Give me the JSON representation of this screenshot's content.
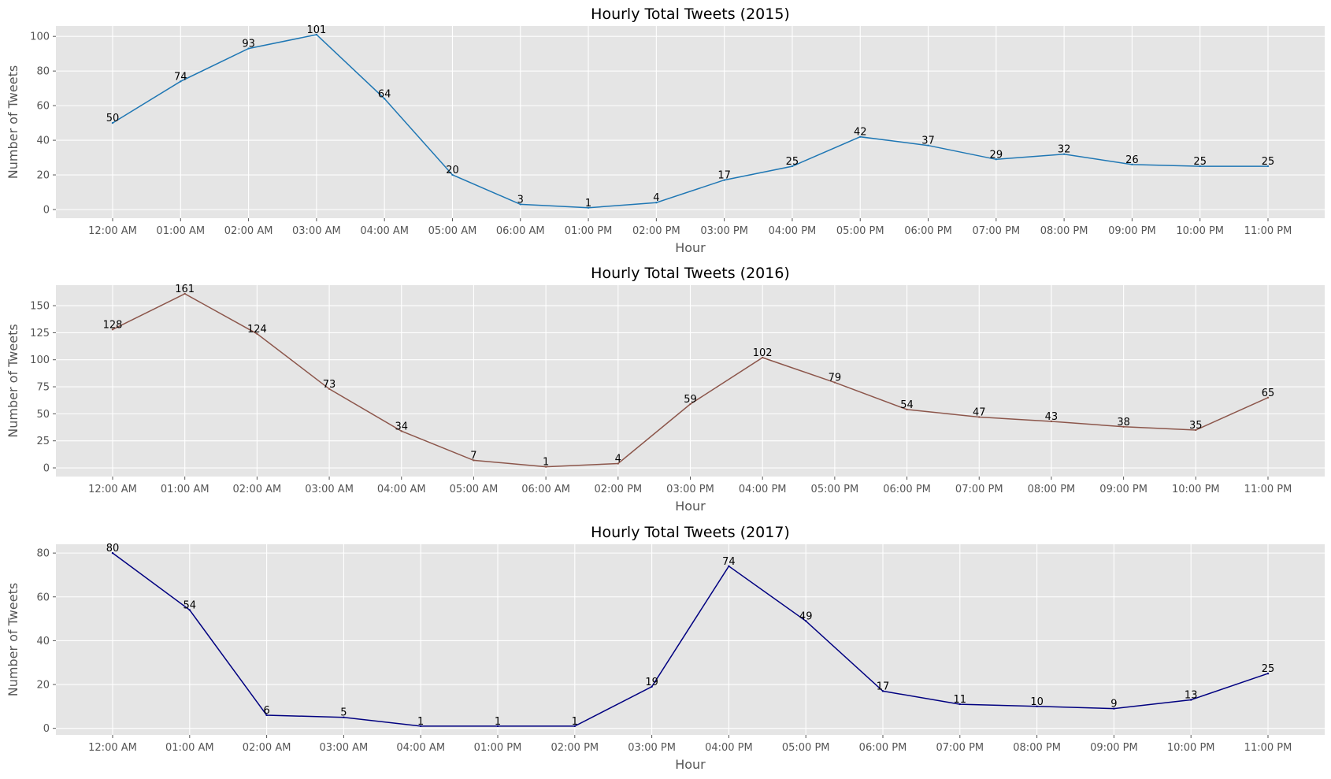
{
  "chart_data": [
    {
      "type": "line",
      "title": "Hourly Total Tweets (2015)",
      "xlabel": "Hour",
      "ylabel": "Number of Tweets",
      "categories": [
        "12:00 AM",
        "01:00 AM",
        "02:00 AM",
        "03:00 AM",
        "04:00 AM",
        "05:00 AM",
        "06:00 AM",
        "01:00 PM",
        "02:00 PM",
        "03:00 PM",
        "04:00 PM",
        "05:00 PM",
        "06:00 PM",
        "07:00 PM",
        "08:00 PM",
        "09:00 PM",
        "10:00 PM",
        "11:00 PM"
      ],
      "values": [
        50,
        74,
        93,
        101,
        64,
        20,
        3,
        1,
        4,
        17,
        25,
        42,
        37,
        29,
        32,
        26,
        25,
        25
      ],
      "yticks": [
        0,
        20,
        40,
        60,
        80,
        100
      ],
      "ylim": [
        -5,
        106
      ],
      "grid": true,
      "color": "#1f77b4"
    },
    {
      "type": "line",
      "title": "Hourly Total Tweets (2016)",
      "xlabel": "Hour",
      "ylabel": "Number of Tweets",
      "categories": [
        "12:00 AM",
        "01:00 AM",
        "02:00 AM",
        "03:00 AM",
        "04:00 AM",
        "05:00 AM",
        "06:00 AM",
        "02:00 PM",
        "03:00 PM",
        "04:00 PM",
        "05:00 PM",
        "06:00 PM",
        "07:00 PM",
        "08:00 PM",
        "09:00 PM",
        "10:00 PM",
        "11:00 PM"
      ],
      "values": [
        128,
        161,
        124,
        73,
        34,
        7,
        1,
        4,
        59,
        102,
        79,
        54,
        47,
        43,
        38,
        35,
        65
      ],
      "yticks": [
        0,
        25,
        50,
        75,
        100,
        125,
        150
      ],
      "ylim": [
        -8,
        169
      ],
      "grid": true,
      "color": "#8c564b"
    },
    {
      "type": "line",
      "title": "Hourly Total Tweets (2017)",
      "xlabel": "Hour",
      "ylabel": "Number of Tweets",
      "categories": [
        "12:00 AM",
        "01:00 AM",
        "02:00 AM",
        "03:00 AM",
        "04:00 AM",
        "01:00 PM",
        "02:00 PM",
        "03:00 PM",
        "04:00 PM",
        "05:00 PM",
        "06:00 PM",
        "07:00 PM",
        "08:00 PM",
        "09:00 PM",
        "10:00 PM",
        "11:00 PM"
      ],
      "values": [
        80,
        54,
        6,
        5,
        1,
        1,
        1,
        19,
        74,
        49,
        17,
        11,
        10,
        9,
        13,
        25
      ],
      "yticks": [
        0,
        20,
        40,
        60,
        80
      ],
      "ylim": [
        -3,
        84
      ],
      "grid": true,
      "color": "#000080"
    }
  ]
}
